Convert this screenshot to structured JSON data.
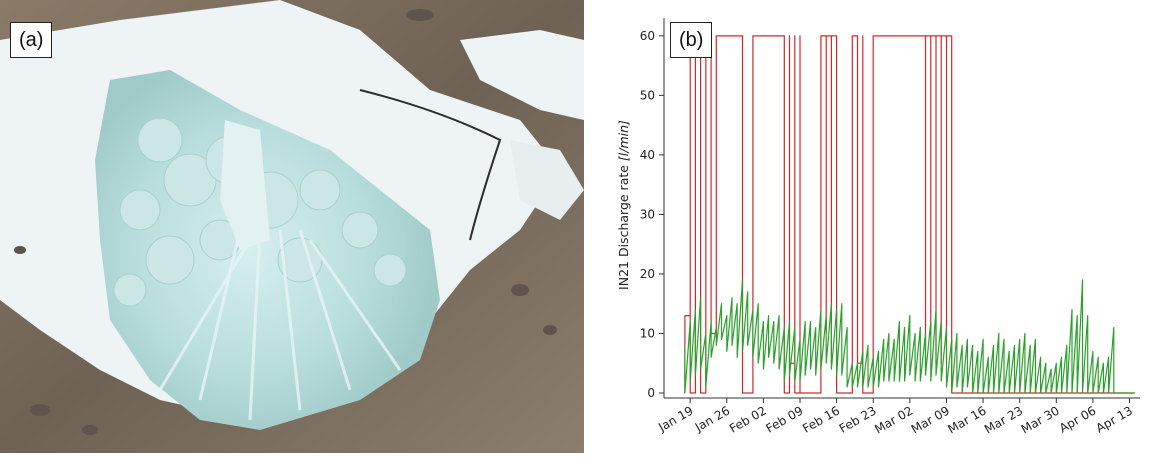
{
  "panels": {
    "photo_label": "(a)",
    "chart_label": "(b)"
  },
  "colors": {
    "discharge_red": "#d62728",
    "discharge_green": "#2ca02c",
    "axis": "#333333"
  },
  "chart_data": {
    "type": "line",
    "title": "",
    "ylabel": "IN21 Discharge rate [l/min]",
    "ylabel_prefix": "IN21 Discharge rate ",
    "ylabel_unit": "[l/min]",
    "xlabel": "",
    "ylim": [
      0,
      63
    ],
    "xlim": [
      "2021-01-14",
      "2021-04-15"
    ],
    "yticks": [
      0,
      10,
      20,
      30,
      40,
      50,
      60
    ],
    "ytick_labels": [
      "0",
      "10",
      "20",
      "30",
      "40",
      "50",
      "60"
    ],
    "xticks": [
      "2021-01-19",
      "2021-01-26",
      "2021-02-02",
      "2021-02-09",
      "2021-02-16",
      "2021-02-23",
      "2021-03-02",
      "2021-03-09",
      "2021-03-16",
      "2021-03-23",
      "2021-03-30",
      "2021-04-06",
      "2021-04-13"
    ],
    "xtick_labels": [
      "Jan 19",
      "Jan 26",
      "Feb 02",
      "Feb 09",
      "Feb 16",
      "Feb 23",
      "Mar 02",
      "Mar 09",
      "Mar 16",
      "Mar 23",
      "Mar 30",
      "Apr 06",
      "Apr 13"
    ],
    "grid": false,
    "series": [
      {
        "color": "#d62728",
        "style": "step",
        "points": [
          [
            "2021-01-18",
            0
          ],
          [
            "2021-01-18",
            13
          ],
          [
            "2021-01-19",
            13
          ],
          [
            "2021-01-19",
            60
          ],
          [
            "2021-01-19",
            0
          ],
          [
            "2021-01-20",
            0
          ],
          [
            "2021-01-20",
            60
          ],
          [
            "2021-01-21",
            60
          ],
          [
            "2021-01-21",
            0
          ],
          [
            "2021-01-22",
            0
          ],
          [
            "2021-01-22",
            60
          ],
          [
            "2021-01-23",
            60
          ],
          [
            "2021-01-23",
            10
          ],
          [
            "2021-01-24",
            10
          ],
          [
            "2021-01-24",
            60
          ],
          [
            "2021-01-29",
            60
          ],
          [
            "2021-01-29",
            0
          ],
          [
            "2021-01-31",
            0
          ],
          [
            "2021-01-31",
            60
          ],
          [
            "2021-02-06",
            60
          ],
          [
            "2021-02-06",
            0
          ],
          [
            "2021-02-07",
            0
          ],
          [
            "2021-02-07",
            60
          ],
          [
            "2021-02-07",
            5
          ],
          [
            "2021-02-08",
            5
          ],
          [
            "2021-02-08",
            60
          ],
          [
            "2021-02-08",
            0
          ],
          [
            "2021-02-09",
            0
          ],
          [
            "2021-02-09",
            60
          ],
          [
            "2021-02-09",
            0
          ],
          [
            "2021-02-13",
            0
          ],
          [
            "2021-02-13",
            60
          ],
          [
            "2021-02-14",
            60
          ],
          [
            "2021-02-14",
            10
          ],
          [
            "2021-02-14",
            60
          ],
          [
            "2021-02-15",
            60
          ],
          [
            "2021-02-15",
            5
          ],
          [
            "2021-02-15",
            60
          ],
          [
            "2021-02-16",
            60
          ],
          [
            "2021-02-16",
            0
          ],
          [
            "2021-02-19",
            0
          ],
          [
            "2021-02-19",
            60
          ],
          [
            "2021-02-20",
            60
          ],
          [
            "2021-02-20",
            5
          ],
          [
            "2021-02-21",
            5
          ],
          [
            "2021-02-21",
            60
          ],
          [
            "2021-02-21",
            0
          ],
          [
            "2021-02-23",
            0
          ],
          [
            "2021-02-23",
            60
          ],
          [
            "2021-03-05",
            60
          ],
          [
            "2021-03-05",
            5
          ],
          [
            "2021-03-05",
            60
          ],
          [
            "2021-03-06",
            60
          ],
          [
            "2021-03-06",
            10
          ],
          [
            "2021-03-06",
            60
          ],
          [
            "2021-03-07",
            60
          ],
          [
            "2021-03-07",
            5
          ],
          [
            "2021-03-07",
            60
          ],
          [
            "2021-03-08",
            60
          ],
          [
            "2021-03-08",
            5
          ],
          [
            "2021-03-08",
            60
          ],
          [
            "2021-03-09",
            60
          ],
          [
            "2021-03-09",
            5
          ],
          [
            "2021-03-09",
            60
          ],
          [
            "2021-03-10",
            60
          ],
          [
            "2021-03-10",
            0
          ],
          [
            "2021-04-14",
            0
          ]
        ]
      },
      {
        "color": "#2ca02c",
        "style": "line",
        "points": [
          [
            "2021-01-18",
            8
          ],
          [
            "2021-01-18",
            0
          ],
          [
            "2021-01-19",
            12
          ],
          [
            "2021-01-19",
            2
          ],
          [
            "2021-01-20",
            14
          ],
          [
            "2021-01-20",
            3
          ],
          [
            "2021-01-21",
            16
          ],
          [
            "2021-01-21",
            4
          ],
          [
            "2021-01-22",
            10
          ],
          [
            "2021-01-22",
            1
          ],
          [
            "2021-01-23",
            12
          ],
          [
            "2021-01-23",
            6
          ],
          [
            "2021-01-24",
            11
          ],
          [
            "2021-01-24",
            8
          ],
          [
            "2021-01-25",
            15
          ],
          [
            "2021-01-25",
            9
          ],
          [
            "2021-01-26",
            13
          ],
          [
            "2021-01-26",
            7
          ],
          [
            "2021-01-27",
            16
          ],
          [
            "2021-01-27",
            8
          ],
          [
            "2021-01-28",
            15
          ],
          [
            "2021-01-28",
            6
          ],
          [
            "2021-01-29",
            19
          ],
          [
            "2021-01-29",
            7
          ],
          [
            "2021-01-30",
            17
          ],
          [
            "2021-01-30",
            8
          ],
          [
            "2021-01-31",
            14
          ],
          [
            "2021-01-31",
            6
          ],
          [
            "2021-02-01",
            15
          ],
          [
            "2021-02-01",
            5
          ],
          [
            "2021-02-02",
            12
          ],
          [
            "2021-02-02",
            4
          ],
          [
            "2021-02-03",
            13
          ],
          [
            "2021-02-03",
            6
          ],
          [
            "2021-02-04",
            12
          ],
          [
            "2021-02-04",
            5
          ],
          [
            "2021-02-05",
            13
          ],
          [
            "2021-02-05",
            4
          ],
          [
            "2021-02-06",
            11
          ],
          [
            "2021-02-06",
            2
          ],
          [
            "2021-02-07",
            12
          ],
          [
            "2021-02-07",
            3
          ],
          [
            "2021-02-08",
            11
          ],
          [
            "2021-02-08",
            2
          ],
          [
            "2021-02-09",
            9
          ],
          [
            "2021-02-09",
            2
          ],
          [
            "2021-02-10",
            12
          ],
          [
            "2021-02-10",
            3
          ],
          [
            "2021-02-11",
            12
          ],
          [
            "2021-02-11",
            4
          ],
          [
            "2021-02-12",
            11
          ],
          [
            "2021-02-12",
            3
          ],
          [
            "2021-02-13",
            14
          ],
          [
            "2021-02-13",
            4
          ],
          [
            "2021-02-14",
            13
          ],
          [
            "2021-02-14",
            5
          ],
          [
            "2021-02-15",
            15
          ],
          [
            "2021-02-15",
            4
          ],
          [
            "2021-02-16",
            14
          ],
          [
            "2021-02-16",
            3
          ],
          [
            "2021-02-17",
            15
          ],
          [
            "2021-02-17",
            3
          ],
          [
            "2021-02-18",
            11
          ],
          [
            "2021-02-18",
            1
          ],
          [
            "2021-02-19",
            5
          ],
          [
            "2021-02-19",
            1
          ],
          [
            "2021-02-20",
            5
          ],
          [
            "2021-02-20",
            1
          ],
          [
            "2021-02-21",
            7
          ],
          [
            "2021-02-21",
            1
          ],
          [
            "2021-02-22",
            8
          ],
          [
            "2021-02-22",
            1
          ],
          [
            "2021-02-23",
            6
          ],
          [
            "2021-02-23",
            1
          ],
          [
            "2021-02-24",
            7
          ],
          [
            "2021-02-24",
            1
          ],
          [
            "2021-02-25",
            9
          ],
          [
            "2021-02-25",
            2
          ],
          [
            "2021-02-26",
            10
          ],
          [
            "2021-02-26",
            2
          ],
          [
            "2021-02-27",
            9
          ],
          [
            "2021-02-27",
            2
          ],
          [
            "2021-02-28",
            12
          ],
          [
            "2021-02-28",
            2
          ],
          [
            "2021-03-01",
            11
          ],
          [
            "2021-03-01",
            2
          ],
          [
            "2021-03-02",
            13
          ],
          [
            "2021-03-02",
            3
          ],
          [
            "2021-03-03",
            10
          ],
          [
            "2021-03-03",
            2
          ],
          [
            "2021-03-04",
            11
          ],
          [
            "2021-03-04",
            2
          ],
          [
            "2021-03-05",
            10
          ],
          [
            "2021-03-05",
            3
          ],
          [
            "2021-03-06",
            12
          ],
          [
            "2021-03-06",
            2
          ],
          [
            "2021-03-07",
            14
          ],
          [
            "2021-03-07",
            3
          ],
          [
            "2021-03-08",
            12
          ],
          [
            "2021-03-08",
            2
          ],
          [
            "2021-03-09",
            11
          ],
          [
            "2021-03-09",
            1
          ],
          [
            "2021-03-10",
            9
          ],
          [
            "2021-03-10",
            0
          ],
          [
            "2021-03-11",
            10
          ],
          [
            "2021-03-11",
            1
          ],
          [
            "2021-03-12",
            8
          ],
          [
            "2021-03-12",
            0
          ],
          [
            "2021-03-13",
            9
          ],
          [
            "2021-03-13",
            1
          ],
          [
            "2021-03-14",
            8
          ],
          [
            "2021-03-14",
            0
          ],
          [
            "2021-03-15",
            7
          ],
          [
            "2021-03-15",
            0
          ],
          [
            "2021-03-16",
            9
          ],
          [
            "2021-03-16",
            0
          ],
          [
            "2021-03-17",
            6
          ],
          [
            "2021-03-17",
            0
          ],
          [
            "2021-03-18",
            8
          ],
          [
            "2021-03-18",
            0
          ],
          [
            "2021-03-19",
            10
          ],
          [
            "2021-03-19",
            0
          ],
          [
            "2021-03-20",
            9
          ],
          [
            "2021-03-20",
            0
          ],
          [
            "2021-03-21",
            7
          ],
          [
            "2021-03-21",
            0
          ],
          [
            "2021-03-22",
            8
          ],
          [
            "2021-03-22",
            0
          ],
          [
            "2021-03-23",
            9
          ],
          [
            "2021-03-23",
            0
          ],
          [
            "2021-03-24",
            10
          ],
          [
            "2021-03-24",
            0
          ],
          [
            "2021-03-25",
            8
          ],
          [
            "2021-03-25",
            0
          ],
          [
            "2021-03-26",
            9
          ],
          [
            "2021-03-26",
            0
          ],
          [
            "2021-03-27",
            6
          ],
          [
            "2021-03-27",
            0
          ],
          [
            "2021-03-28",
            5
          ],
          [
            "2021-03-28",
            0
          ],
          [
            "2021-03-29",
            4
          ],
          [
            "2021-03-29",
            0
          ],
          [
            "2021-03-30",
            5
          ],
          [
            "2021-03-30",
            0
          ],
          [
            "2021-03-31",
            6
          ],
          [
            "2021-03-31",
            0
          ],
          [
            "2021-04-01",
            8
          ],
          [
            "2021-04-01",
            0
          ],
          [
            "2021-04-02",
            14
          ],
          [
            "2021-04-02",
            0
          ],
          [
            "2021-04-03",
            13
          ],
          [
            "2021-04-03",
            0
          ],
          [
            "2021-04-04",
            19
          ],
          [
            "2021-04-04",
            0
          ],
          [
            "2021-04-05",
            13
          ],
          [
            "2021-04-05",
            0
          ],
          [
            "2021-04-06",
            7
          ],
          [
            "2021-04-06",
            0
          ],
          [
            "2021-04-07",
            6
          ],
          [
            "2021-04-07",
            0
          ],
          [
            "2021-04-08",
            5
          ],
          [
            "2021-04-08",
            0
          ],
          [
            "2021-04-09",
            6
          ],
          [
            "2021-04-09",
            0
          ],
          [
            "2021-04-10",
            11
          ],
          [
            "2021-04-10",
            0
          ],
          [
            "2021-04-14",
            0
          ]
        ]
      }
    ]
  }
}
